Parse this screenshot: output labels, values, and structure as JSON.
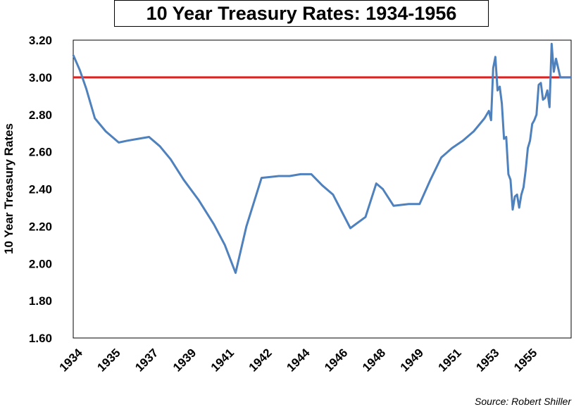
{
  "chart_data": {
    "type": "line",
    "title": "10 Year Treasury Rates: 1934-1956",
    "ylabel": "10 Year Treasury Rates",
    "xlabel": "",
    "source": "Source: Robert Shiller",
    "ylim": [
      1.6,
      3.2
    ],
    "yticks": [
      "3.20",
      "3.00",
      "2.80",
      "2.60",
      "2.40",
      "2.20",
      "2.00",
      "1.80",
      "1.60"
    ],
    "xticks": [
      "1934",
      "1935",
      "1937",
      "1939",
      "1941",
      "1942",
      "1944",
      "1946",
      "1948",
      "1949",
      "1951",
      "1953",
      "1955"
    ],
    "xtick_positions": [
      1934.0,
      1935.75,
      1937.5,
      1939.25,
      1941.0,
      1942.75,
      1944.5,
      1946.25,
      1948.0,
      1949.75,
      1951.5,
      1953.25,
      1955.0
    ],
    "xlim": [
      1934.0,
      1957.0
    ],
    "reference_line": {
      "y": 3.0,
      "color": "#e32020"
    },
    "series": [
      {
        "color": "#4f81bd",
        "x": [
          1934.0,
          1934.3,
          1934.6,
          1935.0,
          1935.5,
          1936.1,
          1936.5,
          1937.0,
          1937.5,
          1938.0,
          1938.5,
          1939.1,
          1939.8,
          1940.5,
          1941.0,
          1941.5,
          1942.0,
          1942.7,
          1943.5,
          1944.0,
          1944.5,
          1945.0,
          1945.5,
          1946.0,
          1946.8,
          1947.5,
          1948.0,
          1948.3,
          1948.8,
          1949.5,
          1950.0,
          1950.5,
          1951.0,
          1951.5,
          1952.0,
          1952.5,
          1953.0,
          1953.2,
          1953.3,
          1953.4,
          1953.5,
          1953.6,
          1953.7,
          1953.8,
          1953.9,
          1954.0,
          1954.1,
          1954.2,
          1954.3,
          1954.4,
          1954.5,
          1954.6,
          1954.7,
          1954.8,
          1954.9,
          1955.0,
          1955.1,
          1955.2,
          1955.3,
          1955.4,
          1955.5,
          1955.6,
          1955.7,
          1955.8,
          1955.9,
          1956.0,
          1956.1,
          1956.2,
          1956.3,
          1956.4,
          1956.5,
          1956.6,
          1956.7,
          1956.8,
          1956.9,
          1957.0
        ],
        "values": [
          3.12,
          3.04,
          2.94,
          2.78,
          2.71,
          2.65,
          2.66,
          2.67,
          2.68,
          2.63,
          2.56,
          2.45,
          2.34,
          2.21,
          2.1,
          1.95,
          2.2,
          2.46,
          2.47,
          2.47,
          2.48,
          2.48,
          2.42,
          2.37,
          2.19,
          2.25,
          2.43,
          2.4,
          2.31,
          2.32,
          2.32,
          2.45,
          2.57,
          2.62,
          2.66,
          2.71,
          2.78,
          2.82,
          2.77,
          3.05,
          3.11,
          2.93,
          2.95,
          2.86,
          2.67,
          2.68,
          2.48,
          2.45,
          2.29,
          2.36,
          2.37,
          2.3,
          2.37,
          2.41,
          2.5,
          2.62,
          2.66,
          2.75,
          2.77,
          2.8,
          2.96,
          2.97,
          2.88,
          2.89,
          2.93,
          2.84,
          3.18,
          3.03,
          3.1,
          3.05,
          3.0,
          3.0,
          3.0,
          3.0,
          3.0,
          3.0
        ]
      }
    ]
  }
}
